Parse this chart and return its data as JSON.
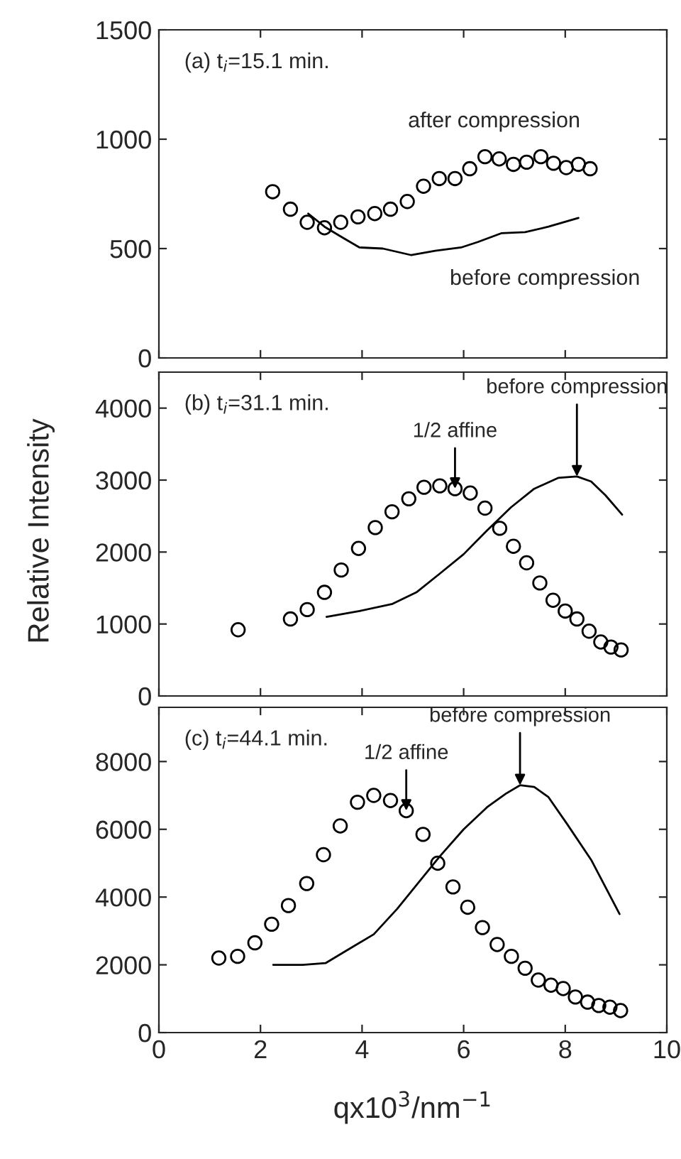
{
  "chart_data": [
    {
      "type": "scatter",
      "xlim": [
        0,
        10
      ],
      "xticks": [
        0,
        2,
        4,
        6,
        8,
        10
      ],
      "ylim": [
        0,
        1500
      ],
      "yticks": [
        0,
        500,
        1000,
        1500
      ],
      "tick_labels": "y",
      "marker": "circle",
      "grid": false,
      "annotations": [
        "(a) t$_{i}$=15.1 min.",
        "after compression",
        "before compression"
      ],
      "series": [
        {
          "color": "#000000",
          "x": [
            2.24,
            2.59,
            2.92,
            3.26,
            3.58,
            3.92,
            4.25,
            4.56,
            4.89,
            5.21,
            5.52,
            5.83,
            6.12,
            6.42,
            6.7,
            6.98,
            7.24,
            7.52,
            7.77,
            8.02,
            8.26,
            8.49
          ],
          "values": [
            760,
            680,
            620,
            595,
            620,
            645,
            660,
            680,
            715,
            785,
            820,
            820,
            865,
            920,
            910,
            885,
            895,
            920,
            890,
            870,
            885,
            865
          ]
        },
        {
          "type": "line",
          "color": "#000000",
          "line_style": "solid",
          "marker": "none",
          "x": [
            2.94,
            3.26,
            3.58,
            3.95,
            4.41,
            4.97,
            5.44,
            5.95,
            6.28,
            6.74,
            7.21,
            7.67,
            8.26
          ],
          "values": [
            660,
            600,
            555,
            505,
            500,
            470,
            490,
            505,
            530,
            570,
            575,
            600,
            640
          ]
        }
      ]
    },
    {
      "type": "scatter",
      "ylabel": "Relative Intensity",
      "xlim": [
        0,
        10
      ],
      "xticks": [
        0,
        2,
        4,
        6,
        8,
        10
      ],
      "ylim": [
        0,
        4500
      ],
      "yticks": [
        0,
        1000,
        2000,
        3000,
        4000
      ],
      "tick_labels": "y",
      "marker": "circle",
      "grid": false,
      "annotations": [
        "(b) t$_{i}$=31.1 min.",
        {
          "text": "1/2 affine",
          "x": 5.83,
          "y": 2880
        },
        {
          "text": "before compression",
          "x": 8.23,
          "y": 3050
        }
      ],
      "series": [
        {
          "color": "#000000",
          "x": [
            1.56,
            2.59,
            2.92,
            3.26,
            3.59,
            3.93,
            4.26,
            4.59,
            4.92,
            5.22,
            5.53,
            5.83,
            6.13,
            6.42,
            6.71,
            6.98,
            7.24,
            7.5,
            7.76,
            8.0,
            8.23,
            8.47,
            8.7,
            8.9,
            9.1
          ],
          "values": [
            920,
            1070,
            1200,
            1440,
            1750,
            2050,
            2340,
            2560,
            2740,
            2900,
            2920,
            2880,
            2820,
            2610,
            2330,
            2080,
            1850,
            1570,
            1330,
            1180,
            1070,
            900,
            750,
            680,
            640
          ]
        },
        {
          "type": "line",
          "color": "#000000",
          "line_style": "solid",
          "marker": "none",
          "x": [
            3.3,
            3.95,
            4.6,
            5.07,
            5.53,
            6.0,
            6.46,
            6.93,
            7.39,
            7.86,
            8.23,
            8.51,
            8.79,
            9.12
          ],
          "values": [
            1100,
            1180,
            1280,
            1440,
            1700,
            1970,
            2300,
            2620,
            2880,
            3030,
            3050,
            2980,
            2790,
            2520
          ]
        }
      ]
    },
    {
      "type": "scatter",
      "xlabel": "qx10$^{3}$/nm$^{−1}$",
      "xlim": [
        0,
        10
      ],
      "xticks": [
        0,
        2,
        4,
        6,
        8,
        10
      ],
      "ylim": [
        0,
        9600
      ],
      "yticks": [
        0,
        2000,
        4000,
        6000,
        8000
      ],
      "marker": "circle",
      "grid": false,
      "annotations": [
        "(c) t$_{i}$=44.1 min.",
        {
          "text": "1/2 affine",
          "x": 4.87,
          "y": 6550
        },
        {
          "text": "before compression",
          "x": 7.11,
          "y": 7300
        }
      ],
      "series": [
        {
          "color": "#000000",
          "x": [
            1.18,
            1.55,
            1.89,
            2.22,
            2.55,
            2.91,
            3.24,
            3.57,
            3.91,
            4.23,
            4.56,
            4.87,
            5.2,
            5.49,
            5.79,
            6.08,
            6.37,
            6.66,
            6.94,
            7.21,
            7.47,
            7.72,
            7.96,
            8.2,
            8.44,
            8.66,
            8.88,
            9.09
          ],
          "values": [
            2200,
            2250,
            2650,
            3200,
            3750,
            4400,
            5250,
            6100,
            6800,
            7000,
            6850,
            6550,
            5850,
            5000,
            4300,
            3700,
            3100,
            2600,
            2250,
            1900,
            1550,
            1400,
            1300,
            1050,
            900,
            800,
            750,
            650
          ]
        },
        {
          "type": "line",
          "color": "#000000",
          "line_style": "solid",
          "marker": "none",
          "x": [
            2.25,
            2.83,
            3.28,
            3.67,
            4.23,
            4.69,
            5.07,
            5.53,
            6.0,
            6.46,
            6.83,
            7.11,
            7.39,
            7.67,
            8.04,
            8.51,
            9.07
          ],
          "values": [
            2000,
            2000,
            2050,
            2400,
            2900,
            3650,
            4350,
            5200,
            6000,
            6650,
            7050,
            7300,
            7250,
            6950,
            6150,
            5100,
            3500
          ]
        }
      ]
    }
  ]
}
